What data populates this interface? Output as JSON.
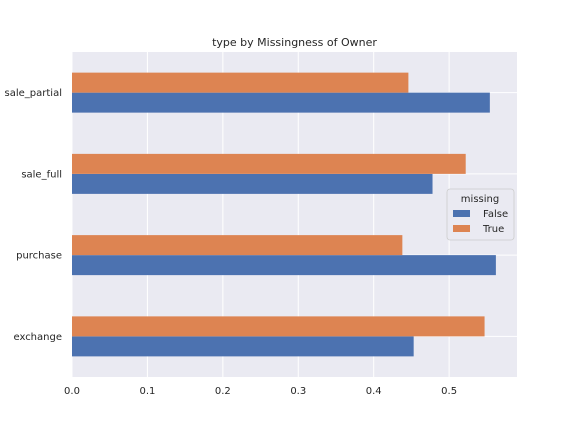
{
  "chart_data": {
    "type": "bar",
    "orientation": "horizontal",
    "title": "type by Missingness of Owner",
    "xlabel": "",
    "ylabel": "",
    "categories": [
      "exchange",
      "purchase",
      "sale_full",
      "sale_partial"
    ],
    "series": [
      {
        "name": "False",
        "color": "#4c72b0",
        "values": [
          0.453,
          0.562,
          0.478,
          0.554
        ]
      },
      {
        "name": "True",
        "color": "#dd8452",
        "values": [
          0.547,
          0.438,
          0.522,
          0.446
        ]
      }
    ],
    "xlim": [
      0.0,
      0.59
    ],
    "xticks": [
      "0.0",
      "0.1",
      "0.2",
      "0.3",
      "0.4",
      "0.5"
    ],
    "grid": true,
    "legend": {
      "title": "missing",
      "placement": "center-right"
    },
    "background_color": "#eaeaf2"
  }
}
